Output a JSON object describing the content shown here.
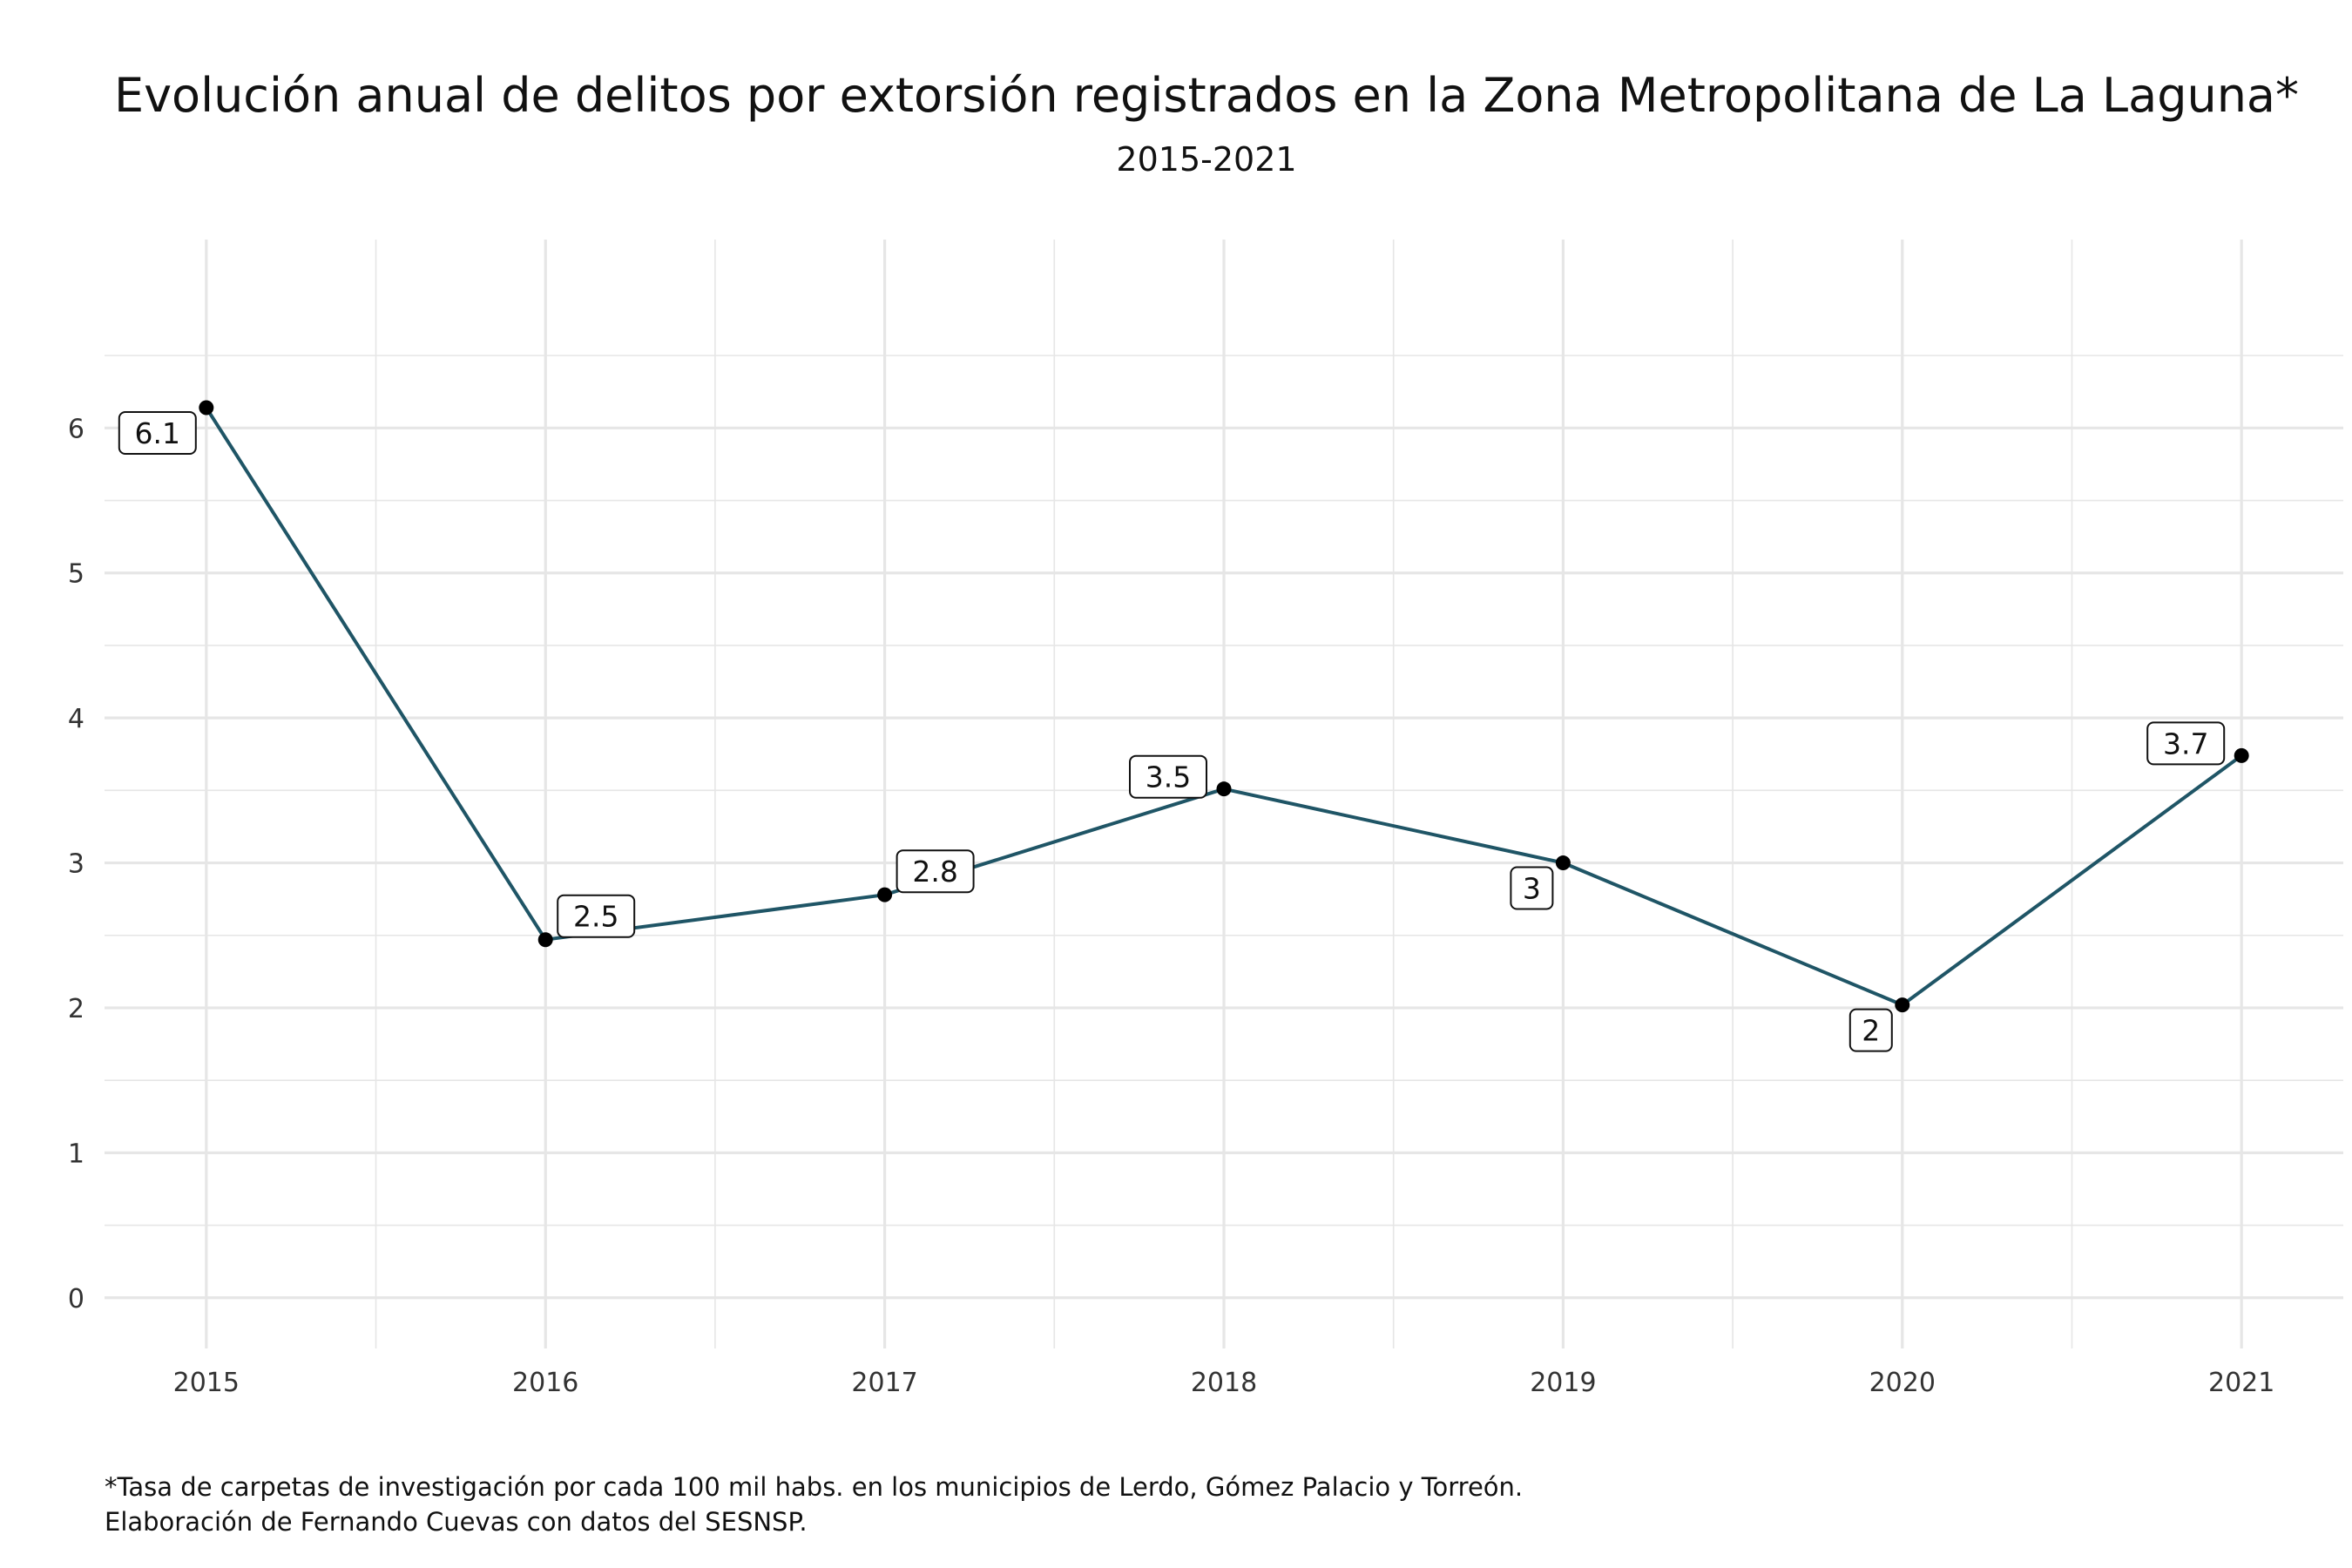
{
  "chart_data": {
    "type": "line",
    "title": "Evolución anual de delitos por extorsión registrados en la Zona Metropolitana de La Laguna*",
    "subtitle": "2015-2021",
    "xlabel": "",
    "ylabel": "",
    "x": [
      2015,
      2016,
      2017,
      2018,
      2019,
      2020,
      2021
    ],
    "x_tick_labels": [
      "2015",
      "2016",
      "2017",
      "2018",
      "2019",
      "2020",
      "2021"
    ],
    "values": [
      6.14,
      2.47,
      2.78,
      3.51,
      3.0,
      2.02,
      3.74
    ],
    "data_labels": [
      "6.1",
      "2.5",
      "2.8",
      "3.5",
      "3",
      "2",
      "3.7"
    ],
    "label_positions": [
      "below-left",
      "above-right",
      "above-right",
      "above-left",
      "below-left",
      "below-left",
      "above-left"
    ],
    "y_ticks": [
      0,
      1,
      2,
      3,
      4,
      5,
      6
    ],
    "y_tick_labels": [
      "0",
      "1",
      "2",
      "3",
      "4",
      "5",
      "6"
    ],
    "ylim": [
      -0.35,
      7.3
    ],
    "xlim": [
      2014.7,
      2021.3
    ],
    "grid": true,
    "legend": "none",
    "line_color": "#1f5566",
    "point_color": "#000000",
    "grid_color": "#e6e6e6"
  },
  "caption": {
    "line1": "*Tasa de carpetas de investigación por cada 100 mil habs. en los municipios de Lerdo, Gómez Palacio y Torreón.",
    "line2": "Elaboración de Fernando Cuevas con datos del SESNSP."
  }
}
